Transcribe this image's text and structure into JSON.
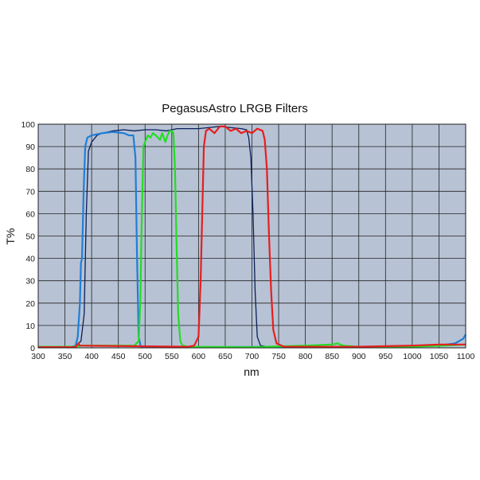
{
  "chart_data": {
    "type": "line",
    "title": "PegasusAstro LRGB Filters",
    "xlabel": "nm",
    "ylabel": "T%",
    "xlim": [
      300,
      1100
    ],
    "ylim": [
      0,
      100
    ],
    "x_ticks": [
      "300",
      "350",
      "400",
      "450",
      "500",
      "550",
      "600",
      "650",
      "700",
      "750",
      "800",
      "850",
      "900",
      "950",
      "1000",
      "1050",
      "1100"
    ],
    "y_ticks": [
      "0",
      "10",
      "20",
      "30",
      "40",
      "50",
      "60",
      "70",
      "80",
      "90",
      "100"
    ],
    "grid": true,
    "legend": "none",
    "plot_background": "#b7c2d4",
    "series": [
      {
        "color": "#0a1f5c",
        "points": [
          [
            300,
            0.5
          ],
          [
            360,
            0.5
          ],
          [
            370,
            1
          ],
          [
            380,
            3
          ],
          [
            386,
            15
          ],
          [
            390,
            60
          ],
          [
            394,
            88
          ],
          [
            400,
            92
          ],
          [
            410,
            95
          ],
          [
            420,
            96
          ],
          [
            440,
            97
          ],
          [
            460,
            97.5
          ],
          [
            480,
            97
          ],
          [
            500,
            97.5
          ],
          [
            520,
            97.5
          ],
          [
            540,
            97
          ],
          [
            560,
            98
          ],
          [
            580,
            98
          ],
          [
            600,
            98
          ],
          [
            620,
            98.5
          ],
          [
            640,
            99
          ],
          [
            660,
            98.5
          ],
          [
            680,
            98
          ],
          [
            690,
            97.5
          ],
          [
            694,
            94
          ],
          [
            698,
            85
          ],
          [
            702,
            60
          ],
          [
            706,
            25
          ],
          [
            710,
            5
          ],
          [
            716,
            1
          ],
          [
            730,
            0.5
          ],
          [
            850,
            0.5
          ],
          [
            950,
            0.5
          ],
          [
            1000,
            1
          ],
          [
            1040,
            1
          ],
          [
            1100,
            1.5
          ]
        ]
      },
      {
        "color": "#1f7fd6",
        "points": [
          [
            300,
            0.3
          ],
          [
            365,
            0.3
          ],
          [
            370,
            1
          ],
          [
            374,
            5
          ],
          [
            378,
            20
          ],
          [
            380,
            38
          ],
          [
            382,
            40
          ],
          [
            385,
            70
          ],
          [
            388,
            90
          ],
          [
            392,
            94
          ],
          [
            400,
            95
          ],
          [
            420,
            96
          ],
          [
            440,
            96.5
          ],
          [
            460,
            96
          ],
          [
            470,
            95
          ],
          [
            478,
            95
          ],
          [
            482,
            85
          ],
          [
            485,
            40
          ],
          [
            488,
            5
          ],
          [
            492,
            0.5
          ],
          [
            600,
            0.3
          ],
          [
            800,
            0.5
          ],
          [
            900,
            0.5
          ],
          [
            1000,
            0.8
          ],
          [
            1050,
            1
          ],
          [
            1080,
            2
          ],
          [
            1095,
            4
          ],
          [
            1100,
            6
          ]
        ]
      },
      {
        "color": "#22dd22",
        "points": [
          [
            300,
            0.5
          ],
          [
            370,
            0.5
          ],
          [
            380,
            1
          ],
          [
            480,
            1
          ],
          [
            488,
            3
          ],
          [
            491,
            20
          ],
          [
            494,
            60
          ],
          [
            497,
            90
          ],
          [
            500,
            92
          ],
          [
            505,
            95
          ],
          [
            510,
            94
          ],
          [
            515,
            96
          ],
          [
            520,
            95
          ],
          [
            528,
            93
          ],
          [
            532,
            96
          ],
          [
            538,
            92
          ],
          [
            542,
            95
          ],
          [
            546,
            97
          ],
          [
            550,
            97
          ],
          [
            553,
            96
          ],
          [
            556,
            80
          ],
          [
            559,
            45
          ],
          [
            562,
            15
          ],
          [
            566,
            3
          ],
          [
            570,
            1
          ],
          [
            580,
            0.5
          ],
          [
            700,
            0.3
          ],
          [
            800,
            1
          ],
          [
            850,
            1.5
          ],
          [
            860,
            2
          ],
          [
            870,
            1
          ],
          [
            900,
            0.5
          ],
          [
            1000,
            0.5
          ],
          [
            1060,
            1
          ],
          [
            1100,
            1.5
          ]
        ]
      },
      {
        "color": "#e81e1e",
        "points": [
          [
            300,
            0.3
          ],
          [
            370,
            0.3
          ],
          [
            375,
            2
          ],
          [
            378,
            1
          ],
          [
            580,
            0.5
          ],
          [
            592,
            1
          ],
          [
            600,
            5
          ],
          [
            604,
            30
          ],
          [
            608,
            70
          ],
          [
            610,
            90
          ],
          [
            614,
            97
          ],
          [
            620,
            98
          ],
          [
            630,
            96
          ],
          [
            640,
            99
          ],
          [
            650,
            99
          ],
          [
            660,
            97
          ],
          [
            670,
            98
          ],
          [
            680,
            96
          ],
          [
            690,
            97
          ],
          [
            700,
            96
          ],
          [
            710,
            98
          ],
          [
            720,
            97
          ],
          [
            724,
            93
          ],
          [
            728,
            80
          ],
          [
            732,
            50
          ],
          [
            736,
            25
          ],
          [
            740,
            8
          ],
          [
            746,
            2
          ],
          [
            760,
            0.5
          ],
          [
            900,
            0.5
          ],
          [
            1000,
            1
          ],
          [
            1050,
            1.5
          ],
          [
            1100,
            1.5
          ]
        ]
      }
    ]
  }
}
